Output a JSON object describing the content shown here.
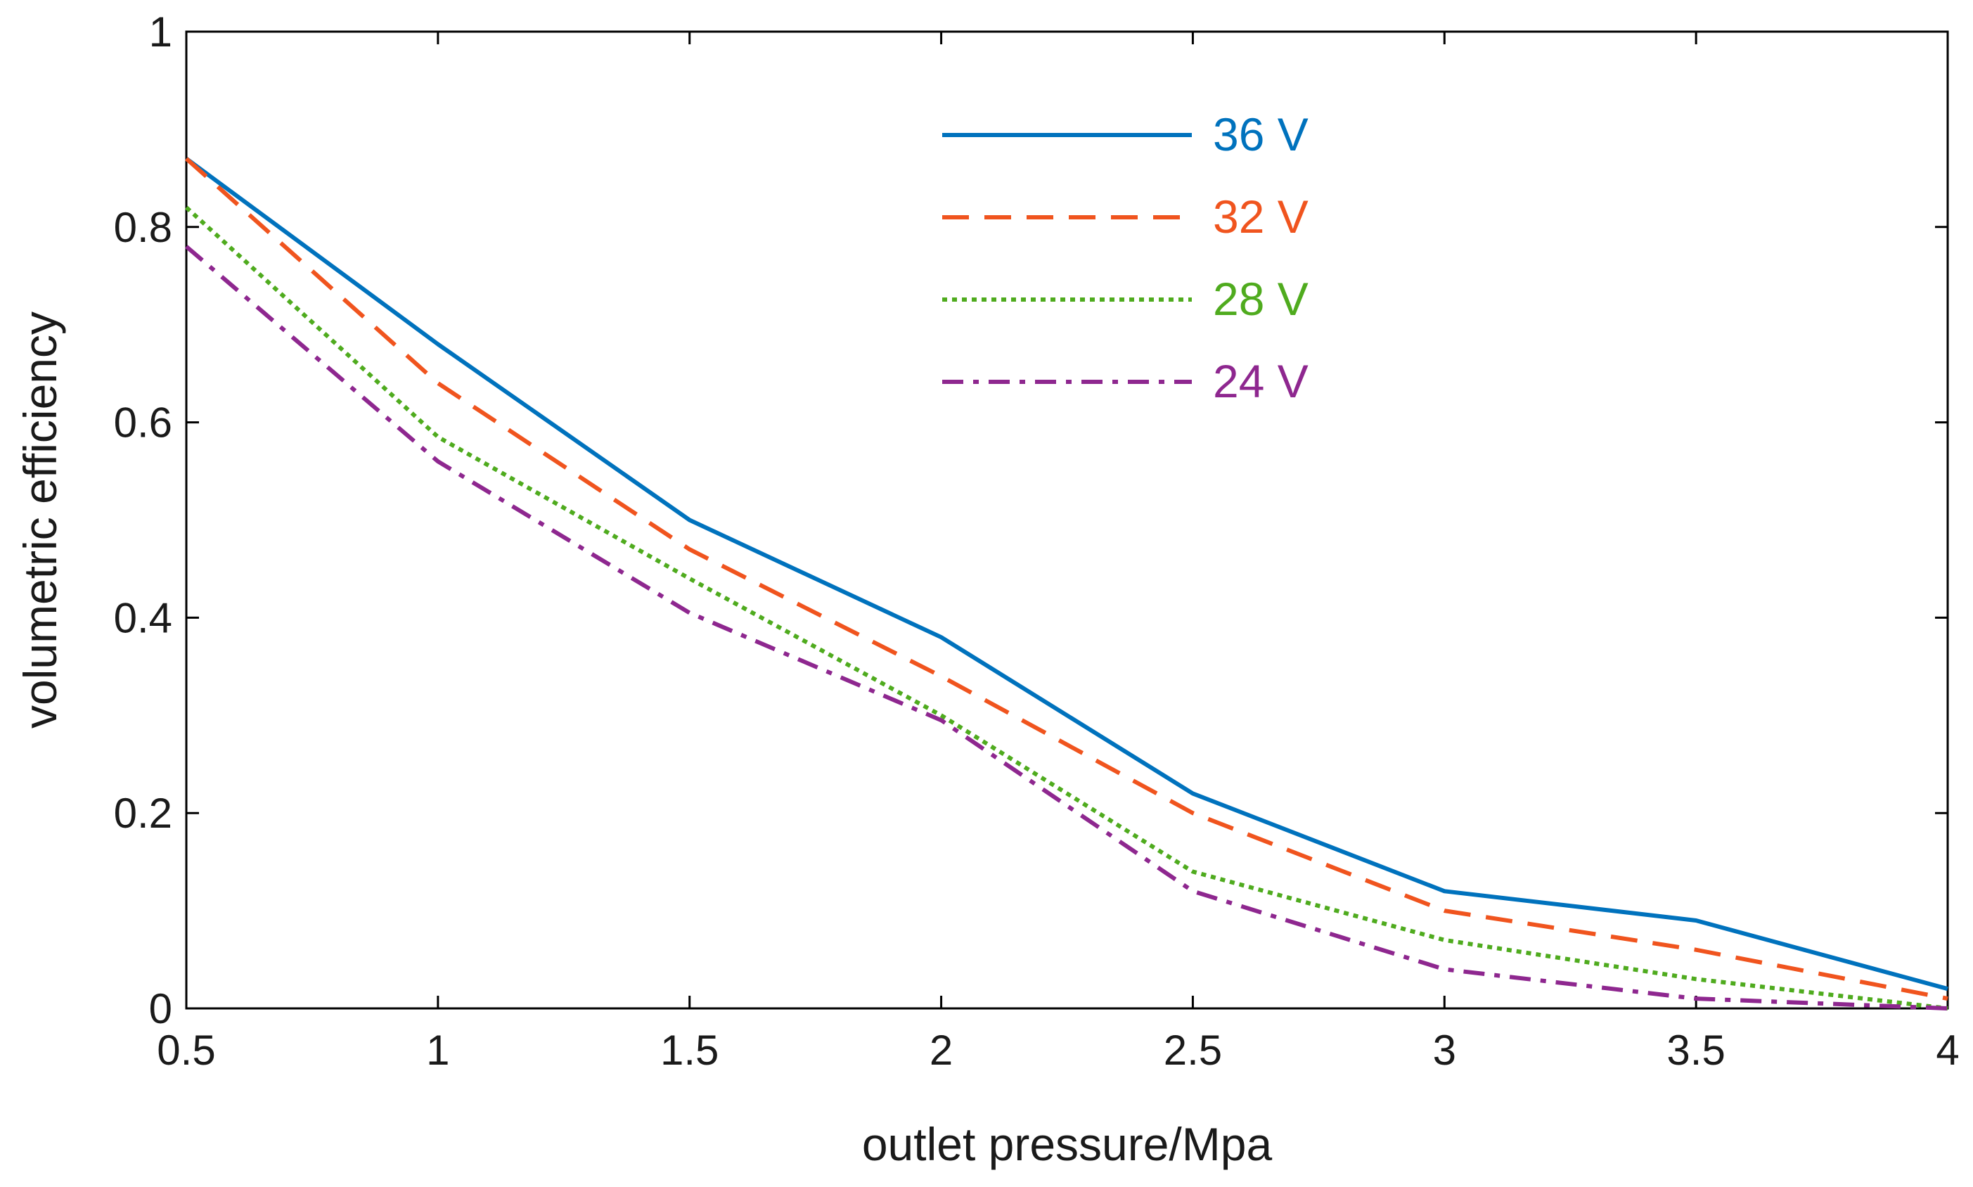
{
  "chart_data": {
    "type": "line",
    "title": "",
    "xlabel": "outlet pressure/Mpa",
    "ylabel": "volumetric efficiency",
    "xlim": [
      0.5,
      4
    ],
    "ylim": [
      0,
      1
    ],
    "x_ticks": [
      0.5,
      1,
      1.5,
      2,
      2.5,
      3,
      3.5,
      4
    ],
    "x_tick_labels": [
      "0.5",
      "1",
      "1.5",
      "2",
      "2.5",
      "3",
      "3.5",
      "4"
    ],
    "y_ticks": [
      0,
      0.2,
      0.4,
      0.6,
      0.8,
      1
    ],
    "y_tick_labels": [
      "0",
      "0.2",
      "0.4",
      "0.6",
      "0.8",
      "1"
    ],
    "grid": false,
    "legend_position": "top-center",
    "x": [
      0.5,
      1,
      1.5,
      2,
      2.5,
      3,
      3.5,
      4
    ],
    "series": [
      {
        "name": "36 V",
        "color": "#0072bd",
        "style": "solid",
        "values": [
          0.87,
          0.68,
          0.5,
          0.38,
          0.22,
          0.12,
          0.09,
          0.02
        ]
      },
      {
        "name": "32 V",
        "color": "#f0541e",
        "style": "dashed",
        "values": [
          0.87,
          0.64,
          0.47,
          0.34,
          0.2,
          0.1,
          0.06,
          0.01
        ]
      },
      {
        "name": "28 V",
        "color": "#4fab1e",
        "style": "dotted",
        "values": [
          0.82,
          0.585,
          0.44,
          0.3,
          0.14,
          0.07,
          0.03,
          0.0
        ]
      },
      {
        "name": "24 V",
        "color": "#8e278f",
        "style": "dashdot",
        "values": [
          0.78,
          0.56,
          0.405,
          0.295,
          0.12,
          0.04,
          0.01,
          0.0
        ]
      }
    ]
  }
}
